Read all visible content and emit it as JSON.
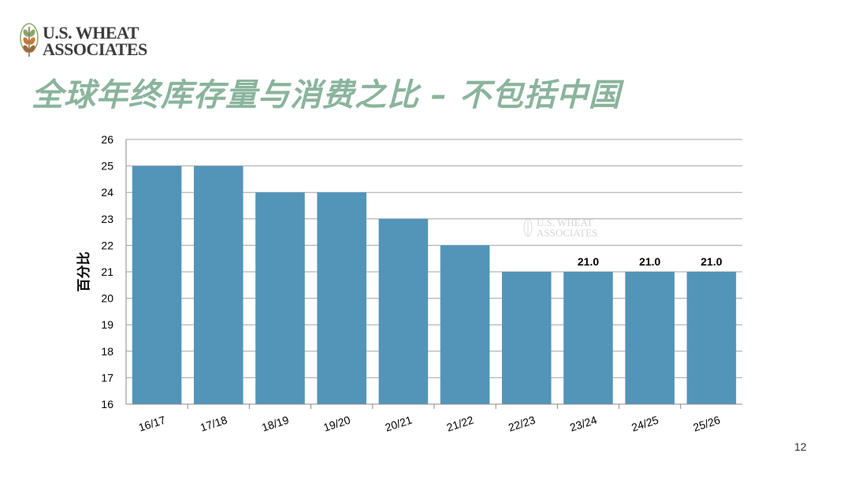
{
  "logo": {
    "line1": "U.S. WHEAT",
    "line2": "ASSOCIATES"
  },
  "slide": {
    "title": "全球年终库存量与消费之比 – 不包括中国",
    "page_number": "12"
  },
  "watermark": {
    "line1": "U.S. WHEAT",
    "line2": "ASSOCIATES"
  },
  "chart_data": {
    "type": "bar",
    "categories": [
      "16/17",
      "17/18",
      "18/19",
      "19/20",
      "20/21",
      "21/22",
      "22/23",
      "23/24",
      "24/25",
      "25/26"
    ],
    "values": [
      25,
      25,
      24,
      24,
      23,
      22,
      21,
      21,
      21,
      21
    ],
    "data_labels": [
      "",
      "",
      "",
      "",
      "",
      "",
      "",
      "21.0",
      "21.0",
      "21.0"
    ],
    "title": "",
    "xlabel": "",
    "ylabel": "百分比",
    "ylim": [
      16,
      26
    ],
    "yticks": [
      "16",
      "17",
      "18",
      "19",
      "20",
      "21",
      "22",
      "23",
      "24",
      "25",
      "26"
    ],
    "grid": true,
    "bar_color": "#5394b9"
  },
  "colors": {
    "title": "#8ab49c",
    "bar": "#5394b9",
    "grid": "#a6a6a6",
    "logo_green": "#8aa86a",
    "logo_orange": "#c97a3a"
  }
}
